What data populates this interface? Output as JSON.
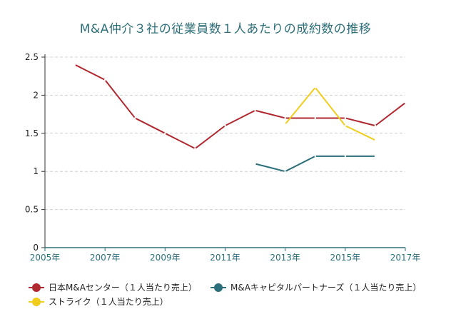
{
  "chart_data": {
    "type": "line",
    "title": "M&A仲介３社の従業員数１人あたりの成約数の推移",
    "xlabel": "",
    "ylabel": "",
    "xlim": [
      2005,
      2017
    ],
    "ylim": [
      0,
      2.5
    ],
    "x_ticks": [
      "2005年",
      "2007年",
      "2009年",
      "2011年",
      "2013年",
      "2015年",
      "2017年"
    ],
    "y_ticks": [
      "0",
      "0.5",
      "1",
      "1.5",
      "2",
      "2.5"
    ],
    "grid": true,
    "legend_position": "bottom",
    "series": [
      {
        "name": "日本M&Aセンター（１人当たり売上）",
        "color": "#b0282f",
        "x": [
          2006,
          2007,
          2008,
          2009,
          2010,
          2011,
          2012,
          2013,
          2014,
          2015,
          2016,
          2017
        ],
        "values": [
          2.4,
          2.2,
          1.7,
          1.5,
          1.3,
          1.6,
          1.8,
          1.7,
          1.7,
          1.7,
          1.6,
          1.9
        ]
      },
      {
        "name": "M&Aキャピタルパートナーズ（１人当たり売上）",
        "color": "#2a6f7a",
        "x": [
          2012,
          2013,
          2014,
          2015,
          2016
        ],
        "values": [
          1.1,
          1.0,
          1.2,
          1.2,
          1.2
        ]
      },
      {
        "name": "ストライク（１人当たり売上）",
        "color": "#f0cc1c",
        "x": [
          2013,
          2014,
          2015,
          2016
        ],
        "values": [
          1.62,
          2.1,
          1.6,
          1.41
        ]
      }
    ]
  }
}
